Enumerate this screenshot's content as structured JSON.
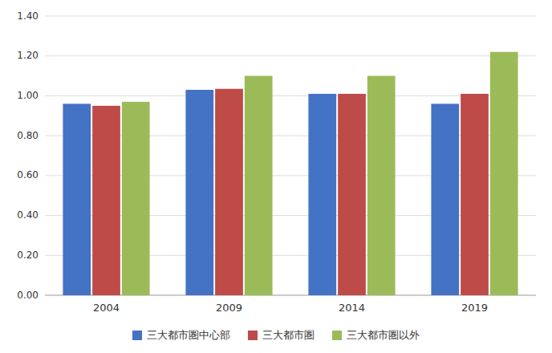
{
  "chart_data": {
    "type": "bar",
    "categories": [
      "2004",
      "2009",
      "2014",
      "2019"
    ],
    "series": [
      {
        "name": "三大都市圏中心部",
        "color": "#4472C4",
        "values": [
          0.96,
          1.03,
          1.01,
          0.96
        ]
      },
      {
        "name": "三大都市圏",
        "color": "#BE4B48",
        "values": [
          0.95,
          1.035,
          1.01,
          1.01
        ]
      },
      {
        "name": "三大都市圏以外",
        "color": "#9BBB59",
        "values": [
          0.97,
          1.1,
          1.1,
          1.22
        ]
      }
    ],
    "ylim": [
      0.0,
      1.4
    ],
    "yticks": [
      {
        "value": 0.0,
        "label": "0.00"
      },
      {
        "value": 0.2,
        "label": "0.20"
      },
      {
        "value": 0.4,
        "label": "0.40"
      },
      {
        "value": 0.6,
        "label": "0.60"
      },
      {
        "value": 0.8,
        "label": "0.80"
      },
      {
        "value": 1.0,
        "label": "1.00"
      },
      {
        "value": 1.2,
        "label": "1.20"
      },
      {
        "value": 1.4,
        "label": "1.40"
      }
    ],
    "grid": true,
    "legend": "bottom"
  }
}
